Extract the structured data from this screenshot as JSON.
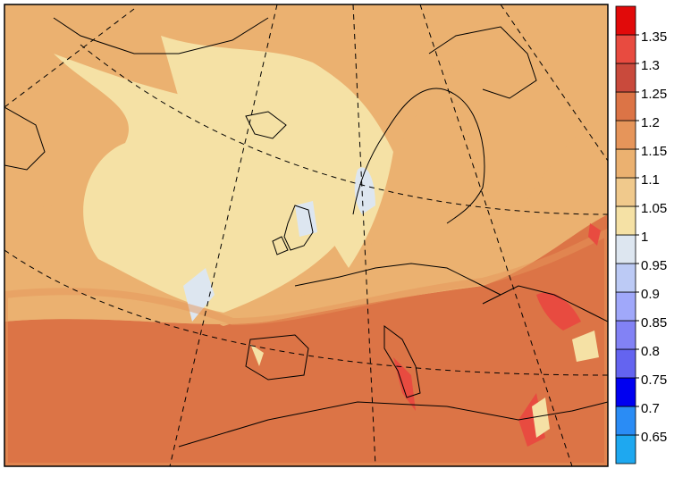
{
  "colorbar": {
    "levels": [
      0.65,
      0.7,
      0.75,
      0.8,
      0.85,
      0.9,
      0.95,
      1,
      1.05,
      1.1,
      1.15,
      1.2,
      1.25,
      1.3,
      1.35
    ],
    "colors": [
      "#1ea8f0",
      "#2a8cf5",
      "#0000f0",
      "#6464f0",
      "#8282f5",
      "#a0a8fa",
      "#bccaf5",
      "#dde6f0",
      "#f5e1a5",
      "#f0c98c",
      "#ebb170",
      "#e6955a",
      "#dc7446",
      "#c94a3c",
      "#e84b40",
      "#e10a0a"
    ]
  }
}
